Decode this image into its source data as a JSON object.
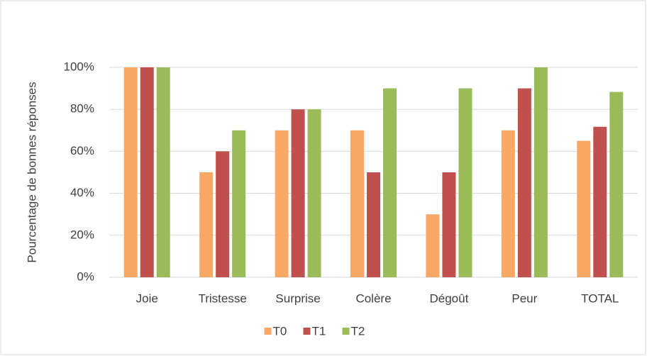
{
  "chart_data": {
    "type": "bar",
    "categories": [
      "Joie",
      "Tristesse",
      "Surprise",
      "Colère",
      "Dégoût",
      "Peur",
      "TOTAL"
    ],
    "series": [
      {
        "name": "T0",
        "color": "#f9a866",
        "values": [
          100,
          50,
          70,
          70,
          30,
          70,
          65
        ]
      },
      {
        "name": "T1",
        "color": "#c0504d",
        "values": [
          100,
          60,
          80,
          50,
          50,
          90,
          71.7
        ]
      },
      {
        "name": "T2",
        "color": "#9bbb59",
        "values": [
          100,
          70,
          80,
          90,
          90,
          100,
          88.3
        ]
      }
    ],
    "ylabel": "Pourcentage de bonnes réponses",
    "ylim": [
      0,
      100
    ],
    "yticks": [
      {
        "value": 0,
        "label": "0%"
      },
      {
        "value": 20,
        "label": "20%"
      },
      {
        "value": 40,
        "label": "40%"
      },
      {
        "value": 60,
        "label": "60%"
      },
      {
        "value": 80,
        "label": "80%"
      },
      {
        "value": 100,
        "label": "100%"
      }
    ],
    "grid": true,
    "legend": "bottom"
  }
}
